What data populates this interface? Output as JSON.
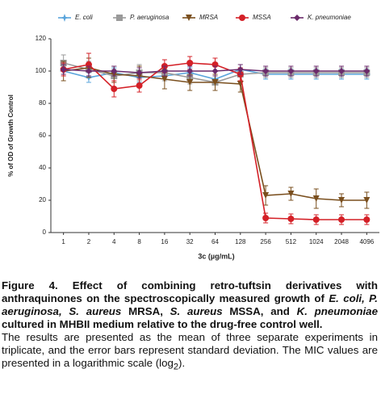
{
  "chart_data": {
    "type": "line",
    "y_label": "% of OD of Growth Control",
    "x_label": "3c (µg/mL)",
    "categories": [
      "1",
      "2",
      "4",
      "8",
      "16",
      "32",
      "64",
      "128",
      "256",
      "512",
      "1024",
      "2048",
      "4096"
    ],
    "ylim": [
      0,
      120
    ],
    "yticks": [
      0,
      20,
      40,
      60,
      80,
      100,
      120
    ],
    "legend": "top",
    "series": [
      {
        "name": "E. coli",
        "color": "#5aa5dc",
        "marker": "star",
        "values": [
          100,
          96,
          99,
          96,
          97,
          99,
          95,
          101,
          98,
          98,
          98,
          98,
          98
        ],
        "errors": [
          3,
          3,
          3,
          3,
          3,
          3,
          3,
          3,
          3,
          3,
          3,
          3,
          3
        ]
      },
      {
        "name": "P. aeruginosa",
        "color": "#9a9a9a",
        "marker": "square",
        "values": [
          105,
          101,
          97,
          99,
          99,
          96,
          93,
          98,
          99,
          99,
          99,
          99,
          99
        ],
        "errors": [
          5,
          5,
          4,
          5,
          5,
          4,
          5,
          4,
          3,
          3,
          3,
          3,
          3
        ]
      },
      {
        "name": "MRSA",
        "color": "#7a4f1e",
        "marker": "triangle",
        "values": [
          100,
          102,
          98,
          97,
          95,
          93,
          93,
          92,
          23,
          24,
          21,
          20,
          20
        ],
        "errors": [
          6,
          6,
          5,
          6,
          6,
          5,
          5,
          5,
          6,
          4,
          6,
          4,
          5
        ]
      },
      {
        "name": "MSSA",
        "color": "#d42027",
        "marker": "circle",
        "values": [
          101,
          104,
          89,
          91,
          103,
          105,
          104,
          98,
          9,
          8.5,
          8,
          8,
          8
        ],
        "errors": [
          4,
          7,
          5,
          4,
          4,
          4,
          4,
          4,
          3,
          3,
          3,
          3,
          3
        ]
      },
      {
        "name": "K. pneumoniae",
        "color": "#6b2a6b",
        "marker": "diamond",
        "values": [
          101,
          100,
          100,
          99,
          100,
          100,
          100,
          101,
          100,
          100,
          100,
          100,
          100
        ],
        "errors": [
          3,
          3,
          3,
          3,
          3,
          3,
          3,
          3,
          3,
          3,
          3,
          3,
          3
        ]
      }
    ]
  },
  "caption": {
    "title": [
      "Figure 4. Effect of combining retro-tuftsin derivatives with anthraquinones on the spectroscopically measured growth of ",
      "E. coli, P. aeruginosa, S. aureus",
      " MRSA, ",
      "S. aureus",
      " MSSA, and ",
      "K. pneumoniae",
      " cultured in MHBII medium relative to the drug-free control well."
    ],
    "body": [
      "The results are presented as the mean of three separate experiments in triplicate, and the error bars represent standard deviation. The MIC values are presented in a logarithmic scale (log",
      "2",
      ")."
    ]
  }
}
